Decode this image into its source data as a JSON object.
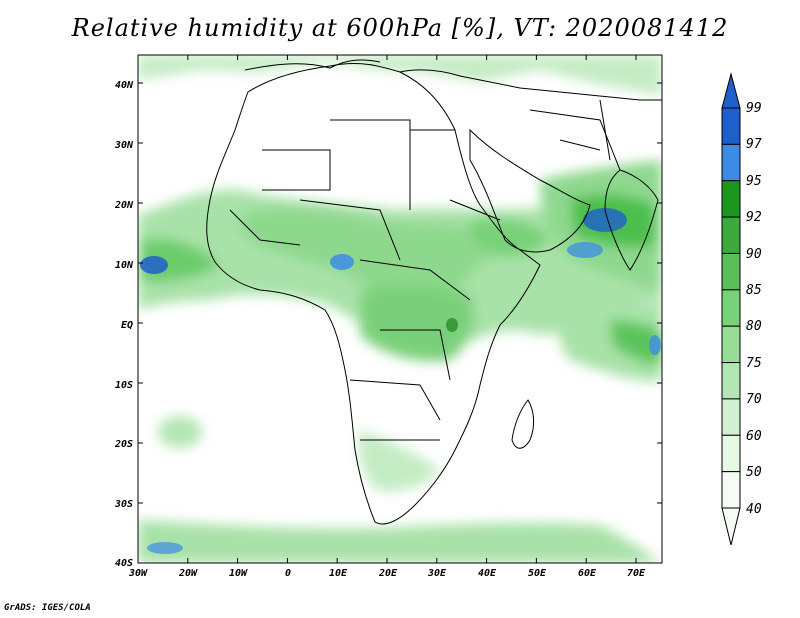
{
  "title": "Relative humidity at 600hPa [%], VT: 2020081412",
  "credit": "GrADS: IGES/COLA",
  "map": {
    "lat_labels": [
      "40N",
      "30N",
      "20N",
      "10N",
      "EQ",
      "10S",
      "20S",
      "30S",
      "40S"
    ],
    "lon_labels": [
      "30W",
      "20W",
      "10W",
      "0",
      "10E",
      "20E",
      "30E",
      "40E",
      "50E",
      "60E",
      "70E"
    ]
  },
  "colorbar": {
    "levels": [
      "99",
      "97",
      "95",
      "92",
      "90",
      "85",
      "80",
      "75",
      "70",
      "60",
      "50",
      "40"
    ],
    "colors": [
      "#1e5fcc",
      "#3c8ce6",
      "#1e961e",
      "#3caa3c",
      "#5abe5a",
      "#78d278",
      "#96dc96",
      "#b4e6b4",
      "#d2f0d2",
      "#e6f8e6",
      "#f4fcf4"
    ]
  }
}
